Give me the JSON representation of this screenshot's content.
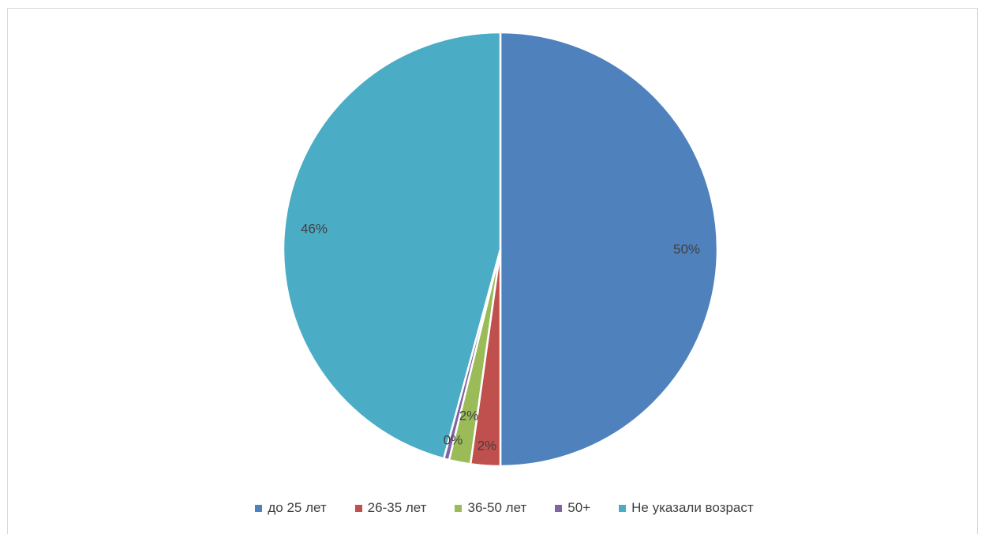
{
  "chart_data": {
    "type": "pie",
    "categories": [
      "до 25 лет",
      "26-35 лет",
      "36-50 лет",
      "50+",
      "Не указали возраст"
    ],
    "values": [
      50,
      2.2,
      1.6,
      0.4,
      45.8
    ],
    "data_labels": [
      "50%",
      "2%",
      "2%",
      "0%",
      "46%"
    ],
    "colors": [
      "#4F81BD",
      "#C0504D",
      "#9BBB59",
      "#8064A2",
      "#4BACC6"
    ],
    "start_angle_deg": 0,
    "direction": "clockwise",
    "legend_position": "bottom"
  },
  "legend": {
    "items": [
      {
        "label": "до 25 лет",
        "color": "#4F81BD"
      },
      {
        "label": "26-35 лет",
        "color": "#C0504D"
      },
      {
        "label": "36-50 лет",
        "color": "#9BBB59"
      },
      {
        "label": "50+",
        "color": "#8064A2"
      },
      {
        "label": "Не указали возраст",
        "color": "#4BACC6"
      }
    ]
  }
}
